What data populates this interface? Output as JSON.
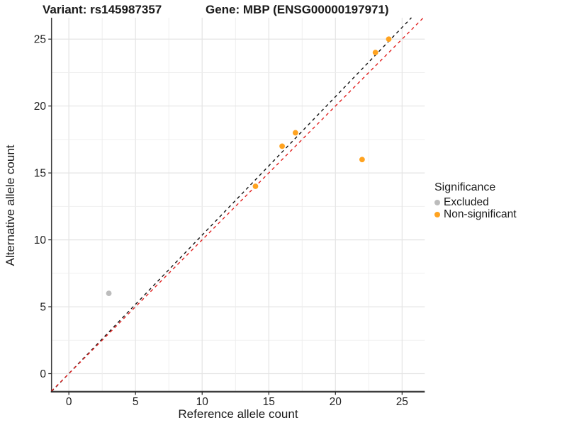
{
  "figure": {
    "title_variant": "Variant: rs145987357",
    "title_gene": "Gene: MBP (ENSG00000197971)"
  },
  "axes": {
    "x_label": "Reference allele count",
    "y_label": "Alternative allele count"
  },
  "legend": {
    "title": "Significance",
    "items": [
      {
        "label": "Excluded",
        "color": "#BCBCBC"
      },
      {
        "label": "Non-significant",
        "color": "#FFA320"
      }
    ]
  },
  "chart_data": {
    "type": "scatter",
    "title": "Variant: rs145987357 / Gene: MBP (ENSG00000197971)",
    "xlabel": "Reference allele count",
    "ylabel": "Alternative allele count",
    "xlim": [
      -1.3,
      26.7
    ],
    "ylim": [
      -1.35,
      26.6
    ],
    "x_ticks": [
      0,
      5,
      10,
      15,
      20,
      25
    ],
    "y_ticks": [
      0,
      5,
      10,
      15,
      20,
      25
    ],
    "minor_step": 2.5,
    "grid": true,
    "legend_position": "right",
    "series": [
      {
        "name": "Excluded",
        "color": "#BCBCBC",
        "points": [
          [
            3,
            6
          ]
        ]
      },
      {
        "name": "Non-significant",
        "color": "#FFA320",
        "points": [
          [
            14,
            14
          ],
          [
            16,
            17
          ],
          [
            17,
            18
          ],
          [
            22,
            16
          ],
          [
            23,
            24
          ],
          [
            24,
            25
          ]
        ]
      }
    ],
    "reference_lines": [
      {
        "name": "fit-line",
        "color": "#111111",
        "style": "dashed",
        "from": [
          -1.3,
          -1.34
        ],
        "to": [
          25.7,
          26.6
        ]
      },
      {
        "name": "identity-line",
        "color": "#E12120",
        "style": "dashed",
        "from": [
          -1.3,
          -1.3
        ],
        "to": [
          26.6,
          26.6
        ]
      }
    ]
  },
  "style_colors": {
    "grid_major": "#E4E4E4",
    "grid_minor": "#EDEDED",
    "axis_line": "#3d3d3d",
    "tick_text": "#1f1f1f"
  }
}
